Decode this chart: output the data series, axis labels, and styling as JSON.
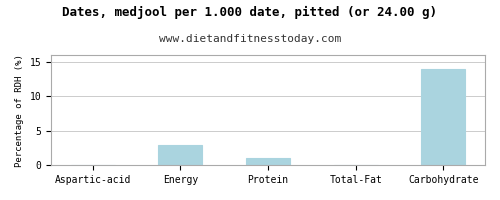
{
  "title": "Dates, medjool per 1.000 date, pitted (or 24.00 g)",
  "subtitle": "www.dietandfitnesstoday.com",
  "categories": [
    "Aspartic-acid",
    "Energy",
    "Protein",
    "Total-Fat",
    "Carbohydrate"
  ],
  "values": [
    0.0,
    3.0,
    1.0,
    0.05,
    14.0
  ],
  "bar_color": "#aad4df",
  "bar_edge_color": "#aad4df",
  "ylabel": "Percentage of RDH (%)",
  "ylim": [
    0,
    16
  ],
  "yticks": [
    0,
    5,
    10,
    15
  ],
  "background_color": "#ffffff",
  "title_fontsize": 9,
  "subtitle_fontsize": 8,
  "ylabel_fontsize": 6.5,
  "tick_fontsize": 7,
  "xtick_fontsize": 7,
  "grid_color": "#cccccc"
}
